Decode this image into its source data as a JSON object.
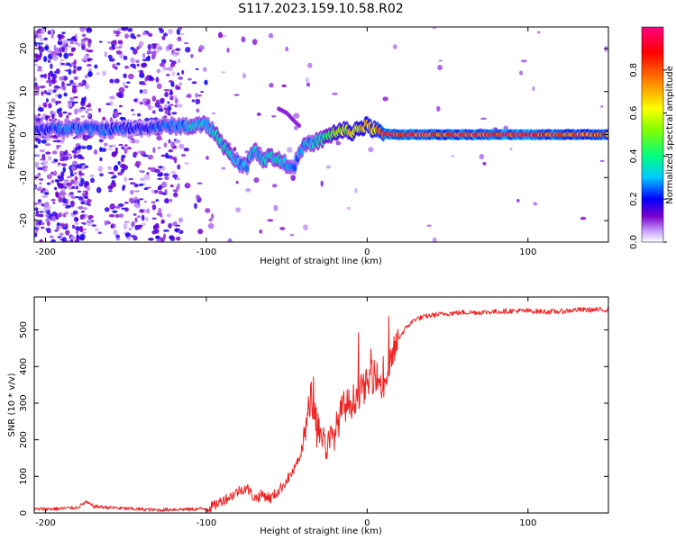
{
  "figure": {
    "title": "S117.2023.159.10.58.R02"
  },
  "chart_data": [
    {
      "type": "heatmap",
      "title": "",
      "xlabel": "Height of straight line (km)",
      "ylabel": "Frequency (Hz)",
      "xlim": [
        -207,
        150
      ],
      "ylim": [
        -25,
        25
      ],
      "xticks": [
        -200,
        -100,
        0,
        100
      ],
      "yticks": [
        20,
        10,
        0,
        -10,
        -20
      ],
      "colorbar": {
        "label": "Normalized spectral amplitude",
        "range": [
          0.0,
          1.0
        ],
        "ticks": [
          0.0,
          0.2,
          0.4,
          0.6,
          0.8
        ],
        "colormap": [
          "#ffffff",
          "#c8a2ff",
          "#7a00cc",
          "#0000ff",
          "#00c8ff",
          "#00ff80",
          "#80ff00",
          "#ffff00",
          "#ff8000",
          "#ff0000",
          "#ff0080"
        ]
      },
      "ridge": {
        "x": [
          -207,
          -185,
          -165,
          -140,
          -125,
          -110,
          -100,
          -95,
          -90,
          -85,
          -80,
          -75,
          -70,
          -65,
          -60,
          -55,
          -50,
          -45,
          -40,
          -35,
          -30,
          -25,
          -20,
          -15,
          -10,
          -5,
          0,
          5,
          10,
          20,
          50,
          100,
          150
        ],
        "freq": [
          1.2,
          1.5,
          1.2,
          1.5,
          2.0,
          2.0,
          2.3,
          0.5,
          -2.0,
          -5.0,
          -6.5,
          -7.5,
          -3.0,
          -6.0,
          -5.0,
          -6.0,
          -7.0,
          -7.0,
          -3.0,
          -2.0,
          -1.5,
          -0.5,
          0.5,
          1.0,
          0.5,
          1.5,
          2.0,
          1.0,
          0.2,
          0.0,
          0.0,
          0.0,
          0.0
        ],
        "amplitude": [
          0.3,
          0.35,
          0.35,
          0.3,
          0.35,
          0.4,
          0.45,
          0.45,
          0.45,
          0.45,
          0.4,
          0.4,
          0.4,
          0.45,
          0.45,
          0.45,
          0.4,
          0.35,
          0.4,
          0.4,
          0.45,
          0.5,
          0.6,
          0.65,
          0.7,
          0.7,
          0.75,
          0.8,
          0.85,
          0.9,
          0.88,
          0.9,
          0.85
        ]
      },
      "side_branch": {
        "x": [
          -55,
          -50,
          -45,
          -42
        ],
        "freq": [
          6.0,
          5.0,
          3.0,
          2.0
        ]
      }
    },
    {
      "type": "line",
      "title": "",
      "xlabel": "Height of straight line (km)",
      "ylabel": "SNR (10 * v/v)",
      "xlim": [
        -207,
        150
      ],
      "ylim": [
        0,
        590
      ],
      "xticks": [
        -200,
        -100,
        0,
        100
      ],
      "yticks": [
        0,
        100,
        200,
        300,
        400,
        500
      ],
      "color": "#ee2222",
      "series": [
        {
          "name": "SNR",
          "x": [
            -207,
            -190,
            -180,
            -175,
            -170,
            -160,
            -150,
            -140,
            -130,
            -120,
            -110,
            -100,
            -95,
            -90,
            -85,
            -80,
            -75,
            -70,
            -65,
            -60,
            -55,
            -50,
            -45,
            -40,
            -35,
            -30,
            -25,
            -20,
            -15,
            -10,
            -5,
            0,
            5,
            10,
            15,
            20,
            25,
            30,
            35,
            40,
            50,
            60,
            70,
            80,
            90,
            100,
            110,
            120,
            130,
            140,
            150
          ],
          "y": [
            10,
            12,
            15,
            30,
            18,
            15,
            12,
            10,
            8,
            10,
            10,
            12,
            20,
            35,
            45,
            60,
            70,
            40,
            50,
            40,
            60,
            90,
            120,
            180,
            320,
            230,
            180,
            220,
            290,
            300,
            330,
            350,
            380,
            340,
            420,
            480,
            510,
            530,
            535,
            540,
            545,
            548,
            548,
            550,
            552,
            552,
            550,
            550,
            555,
            555,
            555
          ]
        }
      ]
    }
  ]
}
